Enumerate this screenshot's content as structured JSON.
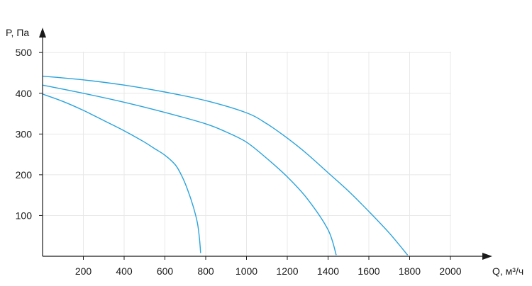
{
  "chart_data": {
    "type": "line",
    "title": "",
    "xlabel": "Q, м³/ч",
    "ylabel": "P, Па",
    "xlim": [
      0,
      2100
    ],
    "ylim": [
      0,
      500
    ],
    "x_ticks": [
      200,
      400,
      600,
      800,
      1000,
      1200,
      1400,
      1600,
      1800,
      2000
    ],
    "y_ticks": [
      100,
      200,
      300,
      400,
      500
    ],
    "grid": true,
    "legend": "none",
    "line_color": "#2aa3dc",
    "series": [
      {
        "points": [
          [
            0,
            398
          ],
          [
            100,
            380
          ],
          [
            200,
            358
          ],
          [
            300,
            333
          ],
          [
            400,
            308
          ],
          [
            500,
            280
          ],
          [
            550,
            264
          ],
          [
            600,
            248
          ],
          [
            650,
            225
          ],
          [
            680,
            200
          ],
          [
            710,
            165
          ],
          [
            740,
            120
          ],
          [
            760,
            80
          ],
          [
            770,
            40
          ],
          [
            775,
            8
          ]
        ]
      },
      {
        "points": [
          [
            0,
            420
          ],
          [
            200,
            400
          ],
          [
            400,
            378
          ],
          [
            600,
            353
          ],
          [
            800,
            325
          ],
          [
            900,
            305
          ],
          [
            1000,
            280
          ],
          [
            1100,
            240
          ],
          [
            1200,
            195
          ],
          [
            1300,
            140
          ],
          [
            1400,
            65
          ],
          [
            1440,
            3
          ]
        ]
      },
      {
        "points": [
          [
            0,
            442
          ],
          [
            200,
            433
          ],
          [
            400,
            420
          ],
          [
            600,
            403
          ],
          [
            800,
            382
          ],
          [
            1000,
            352
          ],
          [
            1100,
            325
          ],
          [
            1200,
            290
          ],
          [
            1300,
            250
          ],
          [
            1400,
            205
          ],
          [
            1500,
            160
          ],
          [
            1600,
            110
          ],
          [
            1700,
            57
          ],
          [
            1790,
            3
          ]
        ]
      }
    ]
  }
}
